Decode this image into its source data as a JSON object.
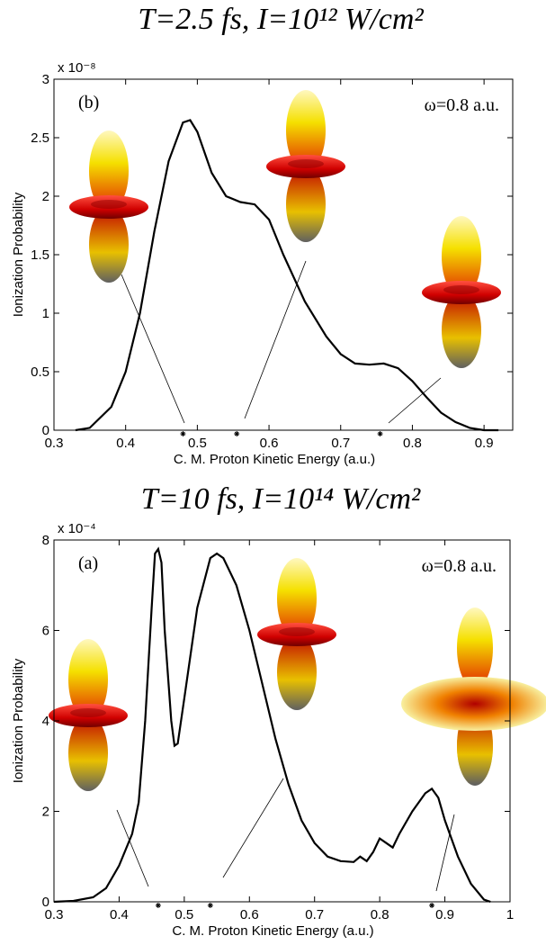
{
  "chart_data": [
    {
      "type": "line",
      "title": "T=2.5 fs, I=10¹² W/cm²",
      "panel_label": "(b)",
      "annotation": "ω=0.8 a.u.",
      "x_label": "C. M. Proton Kinetic Energy (a.u.)",
      "y_label": "Ionization Probability",
      "y_multiplier": "x 10⁻⁸",
      "color": "#000000",
      "x": [
        0.33,
        0.35,
        0.38,
        0.4,
        0.42,
        0.44,
        0.46,
        0.48,
        0.49,
        0.5,
        0.52,
        0.54,
        0.56,
        0.58,
        0.6,
        0.62,
        0.65,
        0.68,
        0.7,
        0.72,
        0.74,
        0.76,
        0.78,
        0.8,
        0.82,
        0.84,
        0.86,
        0.88,
        0.9,
        0.92
      ],
      "values": [
        0,
        0.02,
        0.2,
        0.5,
        1.0,
        1.7,
        2.3,
        2.63,
        2.65,
        2.55,
        2.2,
        2.0,
        1.95,
        1.93,
        1.8,
        1.5,
        1.1,
        0.8,
        0.65,
        0.57,
        0.56,
        0.57,
        0.53,
        0.42,
        0.28,
        0.15,
        0.07,
        0.02,
        0,
        0
      ],
      "marked_energies": [
        0.48,
        0.555,
        0.755
      ],
      "xlim": [
        0.3,
        0.94
      ],
      "xticks": [
        0.3,
        0.4,
        0.5,
        0.6,
        0.7,
        0.8,
        0.9
      ],
      "ylim": [
        0,
        3
      ],
      "yticks": [
        0,
        0.5,
        1,
        1.5,
        2,
        2.5,
        3
      ]
    },
    {
      "type": "line",
      "title": "T=10 fs, I=10¹⁴ W/cm²",
      "panel_label": "(a)",
      "annotation": "ω=0.8 a.u.",
      "x_label": "C. M. Proton Kinetic Energy (a.u.)",
      "y_label": "Ionization Probability",
      "y_multiplier": "x 10⁻⁴",
      "color": "#000000",
      "x": [
        0.3,
        0.33,
        0.36,
        0.38,
        0.4,
        0.42,
        0.43,
        0.44,
        0.45,
        0.455,
        0.46,
        0.465,
        0.47,
        0.48,
        0.485,
        0.49,
        0.5,
        0.52,
        0.54,
        0.55,
        0.56,
        0.58,
        0.6,
        0.62,
        0.64,
        0.66,
        0.68,
        0.7,
        0.72,
        0.74,
        0.76,
        0.77,
        0.78,
        0.79,
        0.8,
        0.81,
        0.82,
        0.83,
        0.85,
        0.87,
        0.88,
        0.89,
        0.9,
        0.92,
        0.94,
        0.96,
        0.97
      ],
      "values": [
        0,
        0.02,
        0.1,
        0.3,
        0.8,
        1.5,
        2.2,
        4.0,
        6.5,
        7.7,
        7.8,
        7.5,
        6.0,
        4.0,
        3.45,
        3.5,
        4.5,
        6.5,
        7.6,
        7.7,
        7.6,
        7.0,
        6.0,
        4.8,
        3.6,
        2.6,
        1.8,
        1.3,
        1.0,
        0.9,
        0.88,
        1.0,
        0.9,
        1.1,
        1.4,
        1.3,
        1.2,
        1.5,
        2.0,
        2.4,
        2.5,
        2.3,
        1.8,
        1.0,
        0.4,
        0.05,
        0
      ],
      "marked_energies": [
        0.46,
        0.54,
        0.88
      ],
      "xlim": [
        0.3,
        1
      ],
      "xticks": [
        0.3,
        0.4,
        0.5,
        0.6,
        0.7,
        0.8,
        0.9,
        1
      ],
      "ylim": [
        0,
        8
      ],
      "yticks": [
        0,
        2,
        4,
        6,
        8
      ]
    }
  ]
}
